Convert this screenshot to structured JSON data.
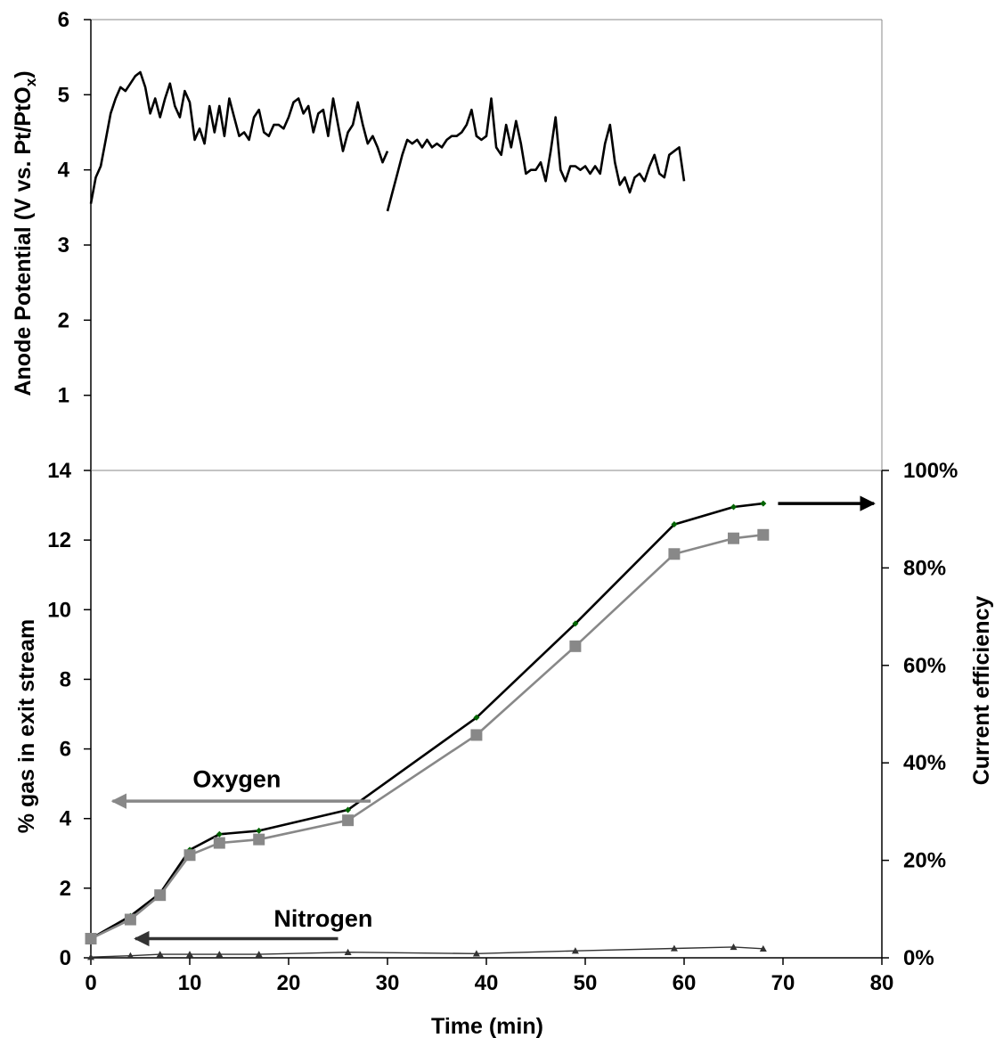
{
  "chart_data": [
    {
      "type": "line",
      "title": "",
      "xlabel": "",
      "ylabel_main": "Anode Potential (V vs. Pt/PtO",
      "ylabel_sub": "x",
      "ylabel_tail": ")",
      "xlim": [
        0,
        80
      ],
      "ylim": [
        0,
        6
      ],
      "y_ticks": [
        "1",
        "2",
        "3",
        "4",
        "5",
        "6"
      ],
      "grid": false,
      "series": [
        {
          "color": "#000000",
          "segments": [
            {
              "x": [
                0,
                0.5,
                1,
                1.5,
                2,
                2.5,
                3,
                3.5,
                4,
                4.5,
                5,
                5.5,
                6,
                6.5,
                7,
                7.5,
                8,
                8.5,
                9,
                9.5,
                10,
                10.5,
                11,
                11.5,
                12,
                12.5,
                13,
                13.5,
                14,
                14.5,
                15,
                15.5,
                16,
                16.5,
                17,
                17.5,
                18,
                18.5,
                19,
                19.5,
                20,
                20.5,
                21,
                21.5,
                22,
                22.5,
                23,
                23.5,
                24,
                24.5,
                25,
                25.5,
                26,
                26.5,
                27,
                27.5,
                28,
                28.5,
                29,
                29.5,
                30
              ],
              "y": [
                3.55,
                3.9,
                4.05,
                4.4,
                4.75,
                4.95,
                5.1,
                5.05,
                5.15,
                5.25,
                5.3,
                5.1,
                4.75,
                4.95,
                4.7,
                4.95,
                5.15,
                4.85,
                4.7,
                5.05,
                4.9,
                4.4,
                4.55,
                4.35,
                4.85,
                4.5,
                4.85,
                4.45,
                4.95,
                4.7,
                4.45,
                4.5,
                4.4,
                4.7,
                4.8,
                4.5,
                4.45,
                4.6,
                4.6,
                4.55,
                4.7,
                4.9,
                4.95,
                4.75,
                4.85,
                4.5,
                4.75,
                4.8,
                4.45,
                4.95,
                4.6,
                4.25,
                4.5,
                4.6,
                4.9,
                4.6,
                4.35,
                4.45,
                4.3,
                4.1,
                4.25
              ]
            },
            {
              "x": [
                30,
                30.5,
                31,
                31.5,
                32,
                32.5,
                33,
                33.5,
                34,
                34.5,
                35,
                35.5,
                36,
                36.5,
                37,
                37.5,
                38,
                38.5,
                39,
                39.5,
                40,
                40.5,
                41,
                41.5,
                42,
                42.5,
                43,
                43.5,
                44,
                44.5,
                45,
                45.5,
                46,
                46.5,
                47,
                47.5,
                48,
                48.5,
                49,
                49.5,
                50,
                50.5,
                51,
                51.5,
                52,
                52.5,
                53,
                53.5,
                54,
                54.5,
                55,
                55.5,
                56,
                56.5,
                57,
                57.5,
                58,
                58.5,
                59,
                59.5,
                60
              ],
              "y": [
                3.45,
                3.7,
                3.95,
                4.2,
                4.4,
                4.35,
                4.4,
                4.3,
                4.4,
                4.3,
                4.35,
                4.3,
                4.4,
                4.45,
                4.45,
                4.5,
                4.6,
                4.8,
                4.45,
                4.4,
                4.45,
                4.95,
                4.3,
                4.2,
                4.6,
                4.3,
                4.65,
                4.35,
                3.95,
                4.0,
                4.0,
                4.1,
                3.85,
                4.25,
                4.7,
                4.0,
                3.85,
                4.05,
                4.05,
                4.0,
                4.05,
                3.95,
                4.05,
                3.95,
                4.35,
                4.6,
                4.1,
                3.8,
                3.9,
                3.7,
                3.9,
                3.95,
                3.85,
                4.05,
                4.2,
                3.95,
                3.9,
                4.2,
                4.25,
                4.3,
                3.85
              ]
            }
          ]
        }
      ]
    },
    {
      "type": "line",
      "title": "",
      "xlabel": "Time (min)",
      "ylabel": "% gas in exit stream",
      "y2label": "Current efficiency",
      "xlim": [
        0,
        80
      ],
      "ylim": [
        0,
        14
      ],
      "y2lim": [
        0,
        100
      ],
      "x_ticks": [
        "0",
        "10",
        "20",
        "30",
        "40",
        "50",
        "60",
        "70",
        "80"
      ],
      "y_ticks": [
        "0",
        "2",
        "4",
        "6",
        "8",
        "10",
        "12",
        "14"
      ],
      "y2_ticks": [
        "0%",
        "20%",
        "40%",
        "60%",
        "80%",
        "100%"
      ],
      "grid": false,
      "series": [
        {
          "axis": "left",
          "color": "#000000",
          "marker_color": "#006400",
          "marker": "diamond",
          "x": [
            0,
            4,
            7,
            10,
            13,
            17,
            26,
            39,
            49,
            59,
            65,
            68
          ],
          "y": [
            0.55,
            1.2,
            1.85,
            3.1,
            3.55,
            3.65,
            4.25,
            6.9,
            9.6,
            12.45,
            12.95,
            13.05
          ]
        },
        {
          "axis": "left",
          "color": "#888888",
          "marker": "square",
          "x": [
            0,
            4,
            7,
            10,
            13,
            17,
            26,
            39,
            49,
            59,
            65,
            68
          ],
          "y": [
            0.55,
            1.1,
            1.8,
            2.95,
            3.3,
            3.4,
            3.95,
            6.4,
            8.95,
            11.6,
            12.05,
            12.15
          ]
        },
        {
          "axis": "left",
          "color": "#333333",
          "marker": "triangle",
          "x": [
            0,
            4,
            7,
            10,
            13,
            17,
            26,
            39,
            49,
            59,
            65,
            68
          ],
          "y": [
            0.02,
            0.06,
            0.1,
            0.1,
            0.1,
            0.1,
            0.16,
            0.12,
            0.2,
            0.27,
            0.31,
            0.26
          ]
        }
      ],
      "annotations": [
        {
          "text": "Oxygen",
          "x": 10.3,
          "y": 4.9,
          "arrow_from": [
            28.3,
            4.5
          ],
          "arrow_to": [
            2.2,
            4.5
          ],
          "arrow_color": "#888888"
        },
        {
          "text": "Nitrogen",
          "x": 18.5,
          "y": 0.9,
          "arrow_from": [
            25,
            0.55
          ],
          "arrow_to": [
            4.5,
            0.55
          ],
          "arrow_color": "#333333"
        },
        {
          "text": "",
          "arrow_from": [
            69.5,
            13.05
          ],
          "arrow_to": [
            79.2,
            13.05
          ],
          "arrow_color": "#000000"
        }
      ]
    }
  ]
}
